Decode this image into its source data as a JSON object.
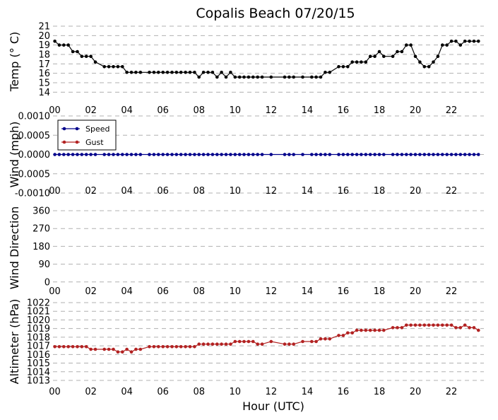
{
  "chart_data": {
    "title": "Copalis Beach 07/20/15",
    "xlabel": "Hour (UTC)",
    "xticks": [
      "00",
      "02",
      "04",
      "06",
      "08",
      "10",
      "12",
      "14",
      "16",
      "18",
      "20",
      "22"
    ],
    "xlim": [
      -0.1,
      23.8
    ],
    "colors": {
      "temp": "#000000",
      "speed": "#00008b",
      "gust": "#b22222",
      "altimeter": "#b22222",
      "grid": "#b0b0b0"
    },
    "panels": [
      {
        "id": "temp",
        "type": "line",
        "ylabel": "Temp (° C)",
        "ylim": [
          13.5,
          21
        ],
        "yticks": [
          "14",
          "15",
          "16",
          "17",
          "18",
          "19",
          "20",
          "21"
        ],
        "ytick_values": [
          14,
          15,
          16,
          17,
          18,
          19,
          20,
          21
        ],
        "series": [
          {
            "key": "temp",
            "x": [
              0,
              0.25,
              0.5,
              0.75,
              1.0,
              1.25,
              1.5,
              1.75,
              2.0,
              2.25,
              2.75,
              3.0,
              3.25,
              3.5,
              3.75,
              4.0,
              4.25,
              4.5,
              4.75,
              5.25,
              5.5,
              5.75,
              6.0,
              6.25,
              6.5,
              6.75,
              7.0,
              7.25,
              7.5,
              7.75,
              8.0,
              8.25,
              8.5,
              8.75,
              9.0,
              9.25,
              9.5,
              9.75,
              10.0,
              10.25,
              10.5,
              10.75,
              11.0,
              11.25,
              11.5,
              12.0,
              12.75,
              13.0,
              13.25,
              13.75,
              14.25,
              14.5,
              14.75,
              15.0,
              15.25,
              15.75,
              16.0,
              16.25,
              16.5,
              16.75,
              17.0,
              17.25,
              17.5,
              17.75,
              18.0,
              18.25,
              18.75,
              19.0,
              19.25,
              19.5,
              19.75,
              20.0,
              20.25,
              20.5,
              20.75,
              21.0,
              21.25,
              21.5,
              21.75,
              22.0,
              22.25,
              22.5,
              22.75,
              23.0,
              23.25,
              23.5
            ],
            "y": [
              19.4,
              19.0,
              19.0,
              19.0,
              18.3,
              18.3,
              17.8,
              17.8,
              17.8,
              17.2,
              16.7,
              16.7,
              16.7,
              16.7,
              16.7,
              16.1,
              16.1,
              16.1,
              16.1,
              16.1,
              16.1,
              16.1,
              16.1,
              16.1,
              16.1,
              16.1,
              16.1,
              16.1,
              16.1,
              16.1,
              15.6,
              16.1,
              16.1,
              16.1,
              15.6,
              16.1,
              15.6,
              16.1,
              15.6,
              15.6,
              15.6,
              15.6,
              15.6,
              15.6,
              15.6,
              15.6,
              15.6,
              15.6,
              15.6,
              15.6,
              15.6,
              15.6,
              15.6,
              16.1,
              16.1,
              16.7,
              16.7,
              16.7,
              17.2,
              17.2,
              17.2,
              17.2,
              17.8,
              17.8,
              18.3,
              17.8,
              17.8,
              18.3,
              18.3,
              19.0,
              19.0,
              17.8,
              17.2,
              16.7,
              16.7,
              17.2,
              17.8,
              19.0,
              19.0,
              19.4,
              19.4,
              19.0,
              19.4,
              19.4,
              19.4,
              19.4
            ]
          }
        ]
      },
      {
        "id": "wind",
        "type": "line",
        "ylabel": "Wind (mph)",
        "ylim": [
          -0.001,
          0.001
        ],
        "yticks": [
          "-0.0010",
          "-0.0005",
          "0.0000",
          "0.0005",
          "0.0010"
        ],
        "ytick_values": [
          -0.001,
          -0.0005,
          0.0,
          0.0005,
          0.001
        ],
        "legend": {
          "placement": "upper-left",
          "entries": [
            "Speed",
            "Gust"
          ]
        },
        "series": [
          {
            "key": "speed",
            "name": "Speed",
            "x": [
              0,
              0.25,
              0.5,
              0.75,
              1.0,
              1.25,
              1.5,
              1.75,
              2.0,
              2.25,
              2.75,
              3.0,
              3.25,
              3.5,
              3.75,
              4.0,
              4.25,
              4.5,
              4.75,
              5.25,
              5.5,
              5.75,
              6.0,
              6.25,
              6.5,
              6.75,
              7.0,
              7.25,
              7.5,
              7.75,
              8.0,
              8.25,
              8.5,
              8.75,
              9.0,
              9.25,
              9.5,
              9.75,
              10.0,
              10.25,
              10.5,
              10.75,
              11.0,
              11.25,
              11.5,
              12.0,
              12.75,
              13.0,
              13.25,
              13.75,
              14.25,
              14.5,
              14.75,
              15.0,
              15.25,
              15.75,
              16.0,
              16.25,
              16.5,
              16.75,
              17.0,
              17.25,
              17.5,
              17.75,
              18.0,
              18.25,
              18.75,
              19.0,
              19.25,
              19.5,
              19.75,
              20.0,
              20.25,
              20.5,
              20.75,
              21.0,
              21.25,
              21.5,
              21.75,
              22.0,
              22.25,
              22.5,
              22.75,
              23.0,
              23.25,
              23.5
            ],
            "y": [
              0,
              0,
              0,
              0,
              0,
              0,
              0,
              0,
              0,
              0,
              0,
              0,
              0,
              0,
              0,
              0,
              0,
              0,
              0,
              0,
              0,
              0,
              0,
              0,
              0,
              0,
              0,
              0,
              0,
              0,
              0,
              0,
              0,
              0,
              0,
              0,
              0,
              0,
              0,
              0,
              0,
              0,
              0,
              0,
              0,
              0,
              0,
              0,
              0,
              0,
              0,
              0,
              0,
              0,
              0,
              0,
              0,
              0,
              0,
              0,
              0,
              0,
              0,
              0,
              0,
              0,
              0,
              0,
              0,
              0,
              0,
              0,
              0,
              0,
              0,
              0,
              0,
              0,
              0,
              0,
              0,
              0,
              0,
              0,
              0,
              0
            ]
          }
        ]
      },
      {
        "id": "direction",
        "type": "scatter",
        "ylabel": "Wind Direction",
        "ylim": [
          -15,
          360
        ],
        "yticks": [
          "0",
          "90",
          "180",
          "270",
          "360"
        ],
        "ytick_values": [
          0,
          90,
          180,
          270,
          360
        ],
        "series": []
      },
      {
        "id": "altimeter",
        "type": "line",
        "ylabel": "Altimeter (hPa)",
        "ylim": [
          1013,
          1022
        ],
        "yticks": [
          "1013",
          "1014",
          "1015",
          "1016",
          "1017",
          "1018",
          "1019",
          "1020",
          "1021",
          "1022"
        ],
        "ytick_values": [
          1013,
          1014,
          1015,
          1016,
          1017,
          1018,
          1019,
          1020,
          1021,
          1022
        ],
        "series": [
          {
            "key": "altimeter",
            "x": [
              0,
              0.25,
              0.5,
              0.75,
              1.0,
              1.25,
              1.5,
              1.75,
              2.0,
              2.25,
              2.75,
              3.0,
              3.25,
              3.5,
              3.75,
              4.0,
              4.25,
              4.5,
              4.75,
              5.25,
              5.5,
              5.75,
              6.0,
              6.25,
              6.5,
              6.75,
              7.0,
              7.25,
              7.5,
              7.75,
              8.0,
              8.25,
              8.5,
              8.75,
              9.0,
              9.25,
              9.5,
              9.75,
              10.0,
              10.25,
              10.5,
              10.75,
              11.0,
              11.25,
              11.5,
              12.0,
              12.75,
              13.0,
              13.25,
              13.75,
              14.25,
              14.5,
              14.75,
              15.0,
              15.25,
              15.75,
              16.0,
              16.25,
              16.5,
              16.75,
              17.0,
              17.25,
              17.5,
              17.75,
              18.0,
              18.25,
              18.75,
              19.0,
              19.25,
              19.5,
              19.75,
              20.0,
              20.25,
              20.5,
              20.75,
              21.0,
              21.25,
              21.5,
              21.75,
              22.0,
              22.25,
              22.5,
              22.75,
              23.0,
              23.25,
              23.5
            ],
            "y": [
              1016.9,
              1016.9,
              1016.9,
              1016.9,
              1016.9,
              1016.9,
              1016.9,
              1016.9,
              1016.6,
              1016.6,
              1016.6,
              1016.6,
              1016.6,
              1016.3,
              1016.3,
              1016.6,
              1016.3,
              1016.6,
              1016.6,
              1016.9,
              1016.9,
              1016.9,
              1016.9,
              1016.9,
              1016.9,
              1016.9,
              1016.9,
              1016.9,
              1016.9,
              1016.9,
              1017.2,
              1017.2,
              1017.2,
              1017.2,
              1017.2,
              1017.2,
              1017.2,
              1017.2,
              1017.5,
              1017.5,
              1017.5,
              1017.5,
              1017.5,
              1017.2,
              1017.2,
              1017.5,
              1017.2,
              1017.2,
              1017.2,
              1017.5,
              1017.5,
              1017.5,
              1017.8,
              1017.8,
              1017.8,
              1018.2,
              1018.2,
              1018.5,
              1018.5,
              1018.8,
              1018.8,
              1018.8,
              1018.8,
              1018.8,
              1018.8,
              1018.8,
              1019.1,
              1019.1,
              1019.1,
              1019.4,
              1019.4,
              1019.4,
              1019.4,
              1019.4,
              1019.4,
              1019.4,
              1019.4,
              1019.4,
              1019.4,
              1019.4,
              1019.1,
              1019.1,
              1019.4,
              1019.1,
              1019.1,
              1018.8
            ]
          }
        ]
      }
    ]
  }
}
